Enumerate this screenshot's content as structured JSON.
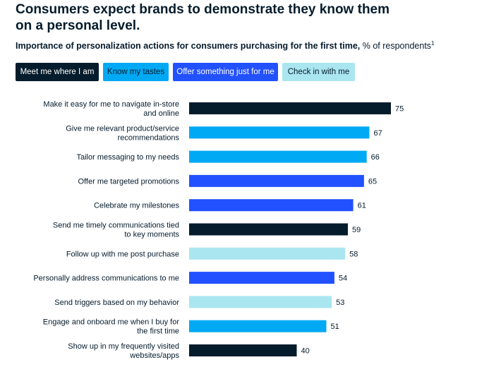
{
  "header": {
    "title_line1": "Consumers expect brands to demonstrate they know them",
    "title_line2": "on a personal level.",
    "subtitle_bold": "Importance of personalization actions for consumers purchasing for the first time,",
    "subtitle_rest": " % of respondents",
    "subtitle_sup": "1"
  },
  "colors": {
    "meet": "#051c2c",
    "know": "#00a9f4",
    "offer": "#2251ff",
    "check": "#aae6f0"
  },
  "chart_data": {
    "type": "bar",
    "orientation": "horizontal",
    "title": "Importance of personalization actions for consumers purchasing for the first time, % of respondents",
    "xlim": [
      0,
      75
    ],
    "legend": [
      {
        "key": "meet",
        "label": "Meet me where I am"
      },
      {
        "key": "know",
        "label": "Know my tastes"
      },
      {
        "key": "offer",
        "label": "Offer something just for me"
      },
      {
        "key": "check",
        "label": "Check in with me"
      }
    ],
    "bars": [
      {
        "label": [
          "Make it easy for me to navigate in-store",
          "and online"
        ],
        "value": 75,
        "group": "meet"
      },
      {
        "label": [
          "Give me relevant product/service",
          "recommendations"
        ],
        "value": 67,
        "group": "know"
      },
      {
        "label": [
          "Tailor messaging to my needs"
        ],
        "value": 66,
        "group": "know"
      },
      {
        "label": [
          "Offer me targeted promotions"
        ],
        "value": 65,
        "group": "offer"
      },
      {
        "label": [
          "Celebrate my milestones"
        ],
        "value": 61,
        "group": "offer"
      },
      {
        "label": [
          "Send me timely communications tied",
          "to key moments"
        ],
        "value": 59,
        "group": "meet"
      },
      {
        "label": [
          "Follow up with me post purchase"
        ],
        "value": 58,
        "group": "check"
      },
      {
        "label": [
          "Personally address communications to me"
        ],
        "value": 54,
        "group": "offer"
      },
      {
        "label": [
          "Send triggers based on my behavior"
        ],
        "value": 53,
        "group": "check"
      },
      {
        "label": [
          "Engage and onboard me when I buy for",
          "the first time"
        ],
        "value": 51,
        "group": "know"
      },
      {
        "label": [
          "Show up in my frequently visited",
          "websites/apps"
        ],
        "value": 40,
        "group": "meet"
      }
    ]
  }
}
